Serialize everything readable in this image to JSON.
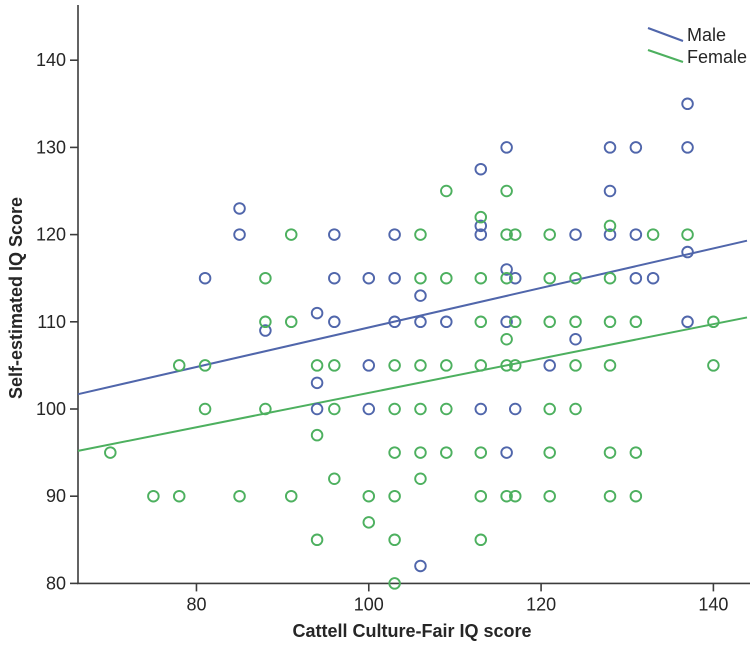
{
  "chart_data": {
    "type": "scatter",
    "title": "",
    "xlabel": "Cattell Culture-Fair IQ score",
    "ylabel": "Self-estimated IQ Score",
    "xlim": [
      66.25,
      143.9
    ],
    "ylim": [
      80,
      146.33
    ],
    "x_ticks": [
      80,
      100,
      120,
      140
    ],
    "y_ticks": [
      80,
      90,
      100,
      110,
      120,
      130,
      140
    ],
    "grid": false,
    "legend_position": "top-right",
    "axis_color": "#3c3c3c",
    "series": [
      {
        "name": "Male",
        "color": "#5066ab",
        "points": [
          [
            137,
            135
          ],
          [
            116,
            130
          ],
          [
            128,
            130
          ],
          [
            131,
            130
          ],
          [
            137,
            130
          ],
          [
            113,
            127.5
          ],
          [
            128,
            125
          ],
          [
            85,
            123
          ],
          [
            113,
            121
          ],
          [
            85,
            120
          ],
          [
            96,
            120
          ],
          [
            103,
            120
          ],
          [
            113,
            120
          ],
          [
            124,
            120
          ],
          [
            128,
            120
          ],
          [
            131,
            120
          ],
          [
            137,
            118
          ],
          [
            116,
            116
          ],
          [
            81,
            115
          ],
          [
            96,
            115
          ],
          [
            100,
            115
          ],
          [
            103,
            115
          ],
          [
            117,
            115
          ],
          [
            131,
            115
          ],
          [
            133,
            115
          ],
          [
            106,
            113
          ],
          [
            94,
            111
          ],
          [
            96,
            110
          ],
          [
            103,
            110
          ],
          [
            106,
            110
          ],
          [
            109,
            110
          ],
          [
            116,
            110
          ],
          [
            137,
            110
          ],
          [
            88,
            109
          ],
          [
            124,
            108
          ],
          [
            100,
            105
          ],
          [
            121,
            105
          ],
          [
            94,
            103
          ],
          [
            94,
            100
          ],
          [
            100,
            100
          ],
          [
            113,
            100
          ],
          [
            117,
            100
          ],
          [
            116,
            95
          ],
          [
            106,
            82
          ]
        ]
      },
      {
        "name": "Female",
        "color": "#4db05f",
        "points": [
          [
            109,
            125
          ],
          [
            116,
            125
          ],
          [
            113,
            122
          ],
          [
            128,
            121
          ],
          [
            91,
            120
          ],
          [
            106,
            120
          ],
          [
            116,
            120
          ],
          [
            117,
            120
          ],
          [
            121,
            120
          ],
          [
            133,
            120
          ],
          [
            137,
            120
          ],
          [
            88,
            115
          ],
          [
            106,
            115
          ],
          [
            109,
            115
          ],
          [
            113,
            115
          ],
          [
            116,
            115
          ],
          [
            121,
            115
          ],
          [
            124,
            115
          ],
          [
            128,
            115
          ],
          [
            88,
            110
          ],
          [
            91,
            110
          ],
          [
            113,
            110
          ],
          [
            117,
            110
          ],
          [
            121,
            110
          ],
          [
            124,
            110
          ],
          [
            128,
            110
          ],
          [
            131,
            110
          ],
          [
            140,
            110
          ],
          [
            116,
            108
          ],
          [
            78,
            105
          ],
          [
            81,
            105
          ],
          [
            94,
            105
          ],
          [
            96,
            105
          ],
          [
            103,
            105
          ],
          [
            106,
            105
          ],
          [
            109,
            105
          ],
          [
            113,
            105
          ],
          [
            116,
            105
          ],
          [
            117,
            105
          ],
          [
            124,
            105
          ],
          [
            128,
            105
          ],
          [
            140,
            105
          ],
          [
            81,
            100
          ],
          [
            88,
            100
          ],
          [
            96,
            100
          ],
          [
            103,
            100
          ],
          [
            106,
            100
          ],
          [
            109,
            100
          ],
          [
            121,
            100
          ],
          [
            124,
            100
          ],
          [
            94,
            97
          ],
          [
            70,
            95
          ],
          [
            103,
            95
          ],
          [
            106,
            95
          ],
          [
            109,
            95
          ],
          [
            113,
            95
          ],
          [
            121,
            95
          ],
          [
            128,
            95
          ],
          [
            131,
            95
          ],
          [
            96,
            92
          ],
          [
            106,
            92
          ],
          [
            75,
            90
          ],
          [
            78,
            90
          ],
          [
            85,
            90
          ],
          [
            91,
            90
          ],
          [
            100,
            90
          ],
          [
            103,
            90
          ],
          [
            113,
            90
          ],
          [
            116,
            90
          ],
          [
            117,
            90
          ],
          [
            121,
            90
          ],
          [
            128,
            90
          ],
          [
            131,
            90
          ],
          [
            100,
            87
          ],
          [
            94,
            85
          ],
          [
            103,
            85
          ],
          [
            113,
            85
          ],
          [
            103,
            80
          ]
        ]
      }
    ],
    "trend_lines": [
      {
        "name": "Male",
        "color": "#5066ab",
        "x1": 66.25,
        "y1": 101.7,
        "x2": 143.9,
        "y2": 119.3
      },
      {
        "name": "Female",
        "color": "#4db05f",
        "x1": 66.25,
        "y1": 95.2,
        "x2": 143.9,
        "y2": 110.5
      }
    ],
    "legend": {
      "male_label": "Male",
      "female_label": "Female"
    }
  }
}
